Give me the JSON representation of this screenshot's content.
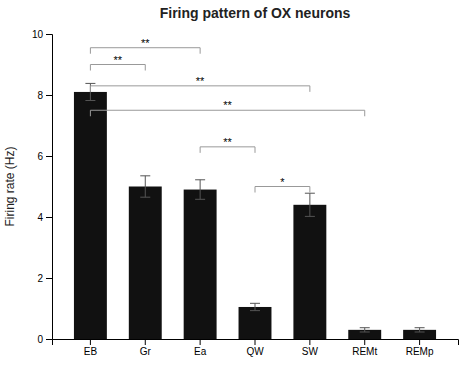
{
  "chart_data": {
    "type": "bar",
    "title": "Firing pattern of OX neurons",
    "ylabel": "Firing rate (Hz)",
    "categories": [
      "EB",
      "Gr",
      "Ea",
      "QW",
      "SW",
      "REMt",
      "REMp"
    ],
    "values": [
      8.1,
      5.0,
      4.9,
      1.05,
      4.4,
      0.3,
      0.3
    ],
    "errors": [
      0.28,
      0.35,
      0.32,
      0.12,
      0.38,
      0.07,
      0.07
    ],
    "color": "#111111",
    "ylim": [
      0,
      10
    ],
    "yticks": [
      0,
      2,
      4,
      6,
      8,
      10
    ],
    "grid": false,
    "annotations": [
      {
        "from": "EB",
        "to": "Gr",
        "y": 9.0,
        "text": "**"
      },
      {
        "from": "EB",
        "to": "Ea",
        "y": 9.55,
        "text": "**"
      },
      {
        "from": "Ea",
        "to": "QW",
        "y": 6.3,
        "text": "**"
      },
      {
        "from": "EB",
        "to": "SW",
        "y": 8.3,
        "text": "**"
      },
      {
        "from": "EB",
        "to": "REMt",
        "y": 7.5,
        "text": "**"
      },
      {
        "from": "QW",
        "to": "SW",
        "y": 5.0,
        "text": "*"
      }
    ]
  }
}
